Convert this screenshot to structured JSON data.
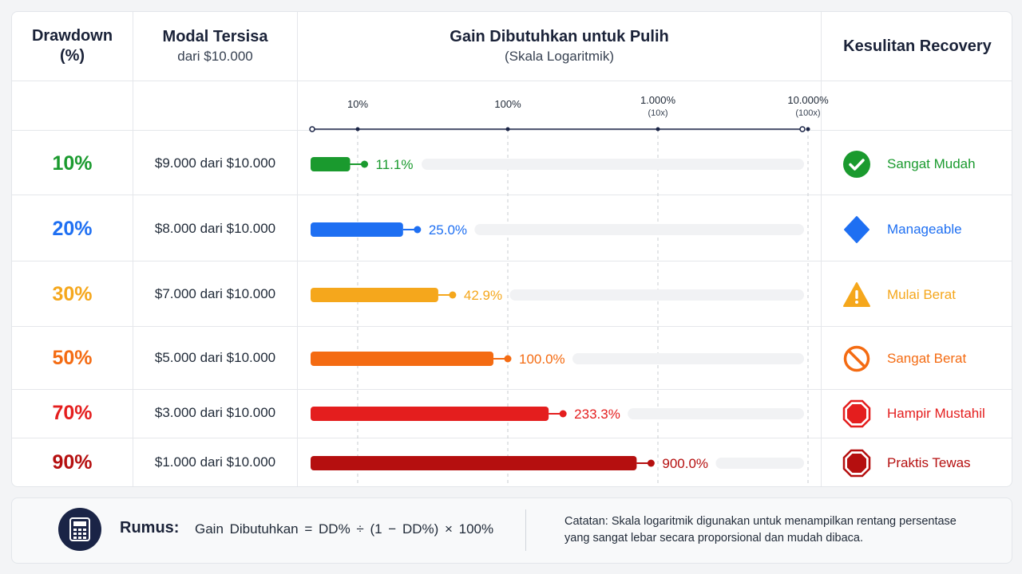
{
  "header": {
    "drawdown_title": "Drawdown",
    "drawdown_sub": "(%)",
    "capital_title": "Modal Tersisa",
    "capital_sub": "dari $10.000",
    "gain_title": "Gain Dibutuhkan untuk Pulih",
    "gain_sub": "(Skala Logaritmik)",
    "difficulty_title": "Kesulitan Recovery"
  },
  "chart_data": {
    "type": "bar",
    "orientation": "horizontal",
    "scale": "log",
    "ticks": [
      {
        "value": 10,
        "label": "10%",
        "sub": ""
      },
      {
        "value": 100,
        "label": "100%",
        "sub": ""
      },
      {
        "value": 1000,
        "label": "1.000%",
        "sub": "(10x)"
      },
      {
        "value": 10000,
        "label": "10.000%",
        "sub": "(100x)"
      }
    ],
    "rows": [
      {
        "drawdown": "10%",
        "capital": "$9.000 dari $10.000",
        "value": 11.1,
        "value_label": "11.1%",
        "color": "#1a9a2e",
        "difficulty": "Sangat Mudah",
        "icon": "check-circle-icon"
      },
      {
        "drawdown": "20%",
        "capital": "$8.000 dari $10.000",
        "value": 25.0,
        "value_label": "25.0%",
        "color": "#1e6ff2",
        "difficulty": "Manageable",
        "icon": "diamond-icon"
      },
      {
        "drawdown": "30%",
        "capital": "$7.000 dari $10.000",
        "value": 42.9,
        "value_label": "42.9%",
        "color": "#f5a71c",
        "difficulty": "Mulai Berat",
        "icon": "warning-triangle-icon"
      },
      {
        "drawdown": "50%",
        "capital": "$5.000 dari $10.000",
        "value": 100.0,
        "value_label": "100.0%",
        "color": "#f46b12",
        "difficulty": "Sangat Berat",
        "icon": "prohibited-icon"
      },
      {
        "drawdown": "70%",
        "capital": "$3.000 dari $10.000",
        "value": 233.3,
        "value_label": "233.3%",
        "color": "#e41e1e",
        "difficulty": "Hampir Mustahil",
        "icon": "stop-octagon-icon"
      },
      {
        "drawdown": "90%",
        "capital": "$1.000 dari $10.000",
        "value": 900.0,
        "value_label": "900.0%",
        "color": "#b50f0f",
        "difficulty": "Praktis Tewas",
        "icon": "stop-octagon-icon"
      }
    ]
  },
  "footer": {
    "title": "Rumus:",
    "formula": "Gain Dibutuhkan = DD% ÷ (1 − DD%) × 100%",
    "note": "Catatan:  Skala logaritmik digunakan untuk menampilkan rentang persentase yang sangat lebar secara proporsional dan mudah dibaca."
  }
}
